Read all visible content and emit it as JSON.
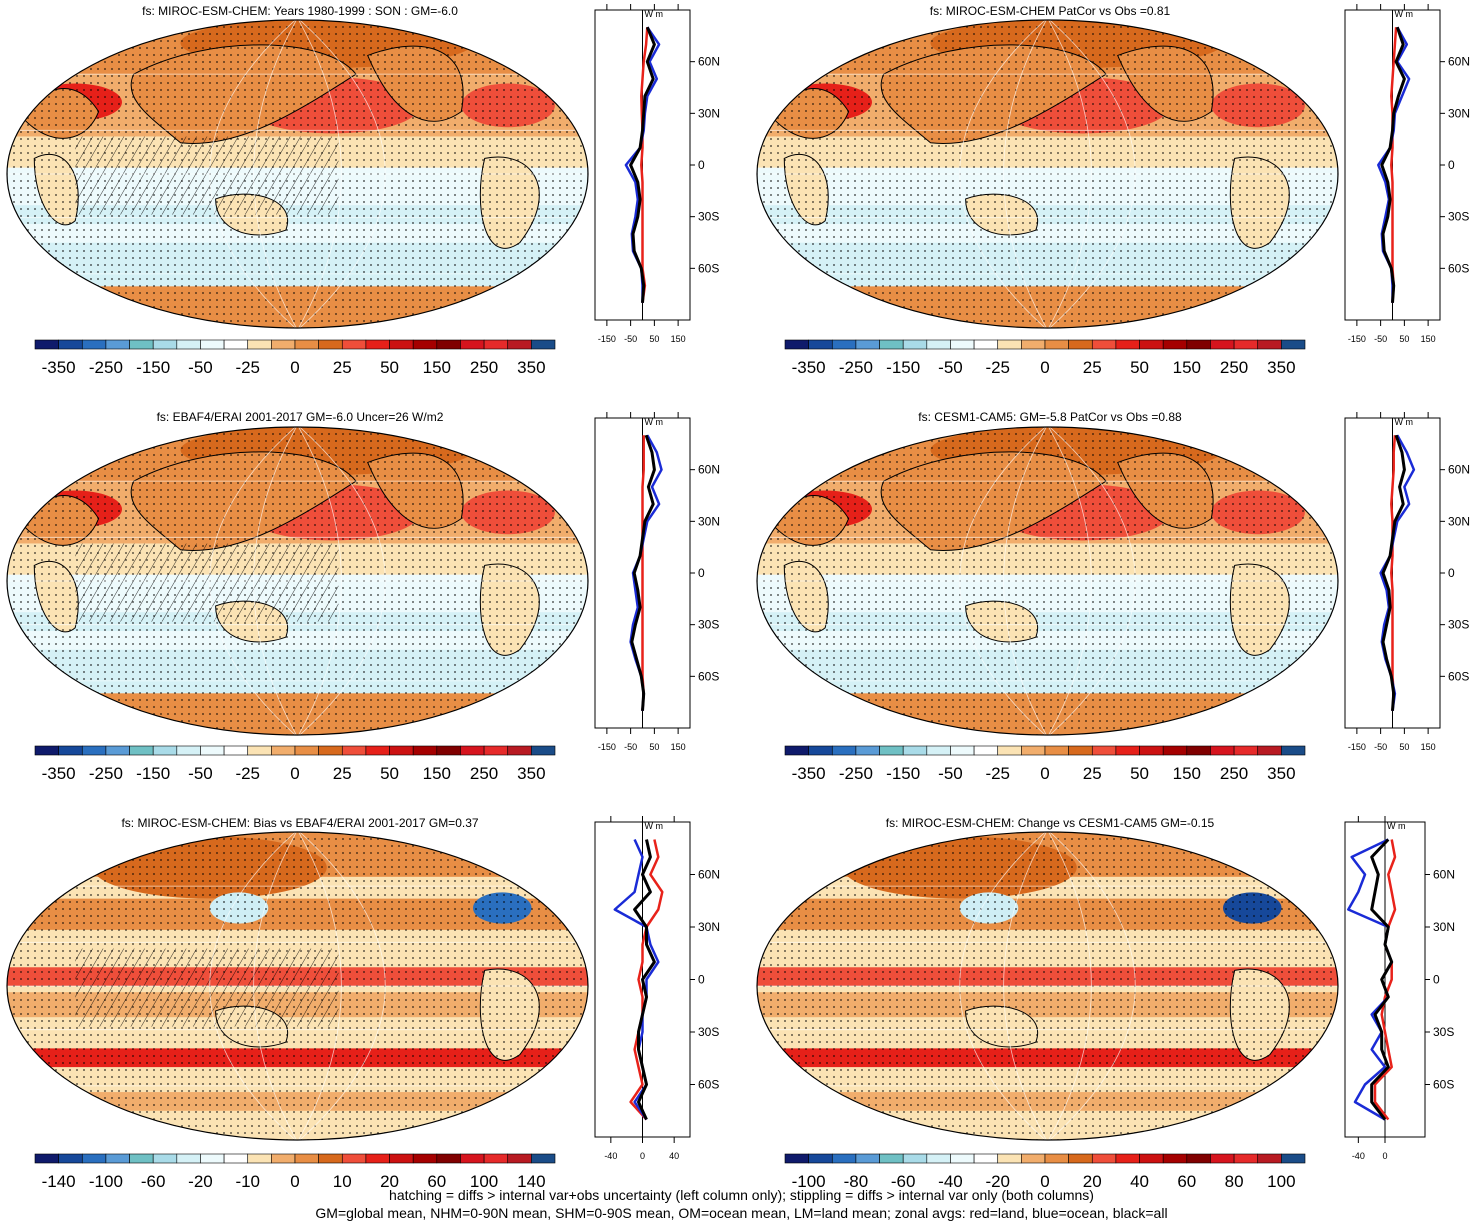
{
  "palette": [
    "#0a1a6e",
    "#133e8f",
    "#1f5fb0",
    "#4a88cf",
    "#6fb8c2",
    "#a7d8e6",
    "#cfeef5",
    "#e9f8fb",
    "#ffffff",
    "#fbe3b6",
    "#f2b47a",
    "#e88e4a",
    "#d96a1f",
    "#f0503a",
    "#e8221a",
    "#cc1010",
    "#a50000",
    "#800000",
    "#d01a1a",
    "#e23030",
    "#b8141e",
    "#1a4d8a"
  ],
  "zonal_axis_units": "W m",
  "chart_data": [
    {
      "type": "heatmap",
      "title": "fs: MIROC-ESM-CHEM: Years 1980-1999 : SON : GM=-6.0",
      "colorbar_labels": [
        "-350",
        "-250",
        "-150",
        "-50",
        "-25",
        "0",
        "25",
        "50",
        "150",
        "250",
        "350"
      ],
      "zonal_ticks": [
        "60N",
        "30N",
        "0",
        "30S",
        "60S"
      ],
      "zonal_xticks": [
        "-150",
        "-50",
        "50",
        "150"
      ],
      "zonal_xrange": [
        -200,
        200
      ],
      "series": [
        {
          "name": "red=land",
          "color": "#e8221a",
          "lat": [
            80,
            70,
            60,
            50,
            40,
            30,
            20,
            10,
            0,
            -10,
            -20,
            -30,
            -40,
            -50,
            -60,
            -70,
            -80
          ],
          "values": [
            20,
            15,
            5,
            0,
            -5,
            -3,
            0,
            0,
            -5,
            0,
            0,
            0,
            0,
            0,
            0,
            10,
            0
          ]
        },
        {
          "name": "blue=ocean",
          "color": "#1a2bd6",
          "lat": [
            80,
            70,
            60,
            50,
            40,
            30,
            20,
            10,
            0,
            -10,
            -20,
            -30,
            -40,
            -50,
            -60,
            -70,
            -80
          ],
          "values": [
            20,
            70,
            30,
            60,
            20,
            10,
            5,
            -10,
            -70,
            -30,
            -20,
            -30,
            -45,
            -40,
            -5,
            0,
            0
          ]
        },
        {
          "name": "black=all",
          "color": "#000000",
          "lat": [
            80,
            70,
            60,
            50,
            40,
            30,
            20,
            10,
            0,
            -10,
            -20,
            -30,
            -40,
            -50,
            -60,
            -70,
            -80
          ],
          "values": [
            20,
            50,
            20,
            45,
            10,
            5,
            0,
            -10,
            -50,
            -20,
            -10,
            -20,
            -40,
            -35,
            -5,
            5,
            0
          ]
        }
      ]
    },
    {
      "type": "heatmap",
      "title": "fs: MIROC-ESM-CHEM PatCor vs Obs =0.81",
      "colorbar_labels": [
        "-350",
        "-250",
        "-150",
        "-50",
        "-25",
        "0",
        "25",
        "50",
        "150",
        "250",
        "350"
      ],
      "zonal_ticks": [
        "60N",
        "30N",
        "0",
        "30S",
        "60S"
      ],
      "zonal_xticks": [
        "-150",
        "-50",
        "50",
        "150"
      ],
      "zonal_xrange": [
        -200,
        200
      ],
      "series": [
        {
          "name": "red=land",
          "color": "#e8221a",
          "lat": [
            80,
            70,
            60,
            50,
            40,
            30,
            20,
            10,
            0,
            -10,
            -20,
            -30,
            -40,
            -50,
            -60,
            -70,
            -80
          ],
          "values": [
            15,
            10,
            5,
            0,
            -5,
            0,
            0,
            0,
            -5,
            0,
            0,
            0,
            0,
            0,
            0,
            5,
            0
          ]
        },
        {
          "name": "blue=ocean",
          "color": "#1a2bd6",
          "lat": [
            80,
            70,
            60,
            50,
            40,
            30,
            20,
            10,
            0,
            -10,
            -20,
            -30,
            -40,
            -50,
            -60,
            -70,
            -80
          ],
          "values": [
            20,
            60,
            20,
            70,
            40,
            10,
            5,
            -10,
            -60,
            -30,
            -15,
            -30,
            -45,
            -40,
            -5,
            0,
            0
          ]
        },
        {
          "name": "black=all",
          "color": "#000000",
          "lat": [
            80,
            70,
            60,
            50,
            40,
            30,
            20,
            10,
            0,
            -10,
            -20,
            -30,
            -40,
            -50,
            -60,
            -70,
            -80
          ],
          "values": [
            20,
            45,
            15,
            50,
            25,
            5,
            0,
            -10,
            -45,
            -20,
            -10,
            -20,
            -40,
            -35,
            -5,
            5,
            0
          ]
        }
      ]
    },
    {
      "type": "heatmap",
      "title": "fs: EBAF4/ERAI 2001-2017 GM=-6.0 Uncer=26 W/m2",
      "colorbar_labels": [
        "-350",
        "-250",
        "-150",
        "-50",
        "-25",
        "0",
        "25",
        "50",
        "150",
        "250",
        "350"
      ],
      "zonal_ticks": [
        "60N",
        "30N",
        "0",
        "30S",
        "60S"
      ],
      "zonal_xticks": [
        "-150",
        "-50",
        "50",
        "150"
      ],
      "zonal_xrange": [
        -200,
        200
      ],
      "series": [
        {
          "name": "red=land",
          "color": "#e8221a",
          "lat": [
            80,
            70,
            60,
            50,
            40,
            30,
            20,
            10,
            0,
            -10,
            -20,
            -30,
            -40,
            -50,
            -60,
            -70,
            -80
          ],
          "values": [
            5,
            5,
            5,
            0,
            0,
            0,
            0,
            0,
            0,
            0,
            0,
            0,
            0,
            0,
            0,
            5,
            0
          ]
        },
        {
          "name": "blue=ocean",
          "color": "#1a2bd6",
          "lat": [
            80,
            70,
            60,
            50,
            40,
            30,
            20,
            10,
            0,
            -10,
            -20,
            -30,
            -40,
            -50,
            -60,
            -70,
            -80
          ],
          "values": [
            20,
            60,
            80,
            40,
            70,
            20,
            5,
            -10,
            -40,
            -30,
            -20,
            -40,
            -50,
            -30,
            -5,
            5,
            0
          ]
        },
        {
          "name": "black=all",
          "color": "#000000",
          "lat": [
            80,
            70,
            60,
            50,
            40,
            30,
            20,
            10,
            0,
            -10,
            -20,
            -30,
            -40,
            -50,
            -60,
            -70,
            -80
          ],
          "values": [
            15,
            40,
            50,
            25,
            45,
            10,
            0,
            -10,
            -35,
            -20,
            -10,
            -30,
            -45,
            -25,
            -5,
            5,
            0
          ]
        }
      ]
    },
    {
      "type": "heatmap",
      "title": "fs: CESM1-CAM5: GM=-5.8 PatCor vs Obs =0.88",
      "colorbar_labels": [
        "-350",
        "-250",
        "-150",
        "-50",
        "-25",
        "0",
        "25",
        "50",
        "150",
        "250",
        "350"
      ],
      "zonal_ticks": [
        "60N",
        "30N",
        "0",
        "30S",
        "60S"
      ],
      "zonal_xticks": [
        "-150",
        "-50",
        "50",
        "150"
      ],
      "zonal_xrange": [
        -200,
        200
      ],
      "series": [
        {
          "name": "red=land",
          "color": "#e8221a",
          "lat": [
            80,
            70,
            60,
            50,
            40,
            30,
            20,
            10,
            0,
            -10,
            -20,
            -30,
            -40,
            -50,
            -60,
            -70,
            -80
          ],
          "values": [
            10,
            5,
            5,
            0,
            -5,
            0,
            0,
            0,
            -5,
            0,
            0,
            0,
            0,
            0,
            0,
            5,
            0
          ]
        },
        {
          "name": "blue=ocean",
          "color": "#1a2bd6",
          "lat": [
            80,
            70,
            60,
            50,
            40,
            30,
            20,
            10,
            0,
            -10,
            -20,
            -30,
            -40,
            -50,
            -60,
            -70,
            -80
          ],
          "values": [
            20,
            60,
            90,
            50,
            70,
            20,
            5,
            -10,
            -50,
            -25,
            -15,
            -35,
            -45,
            -30,
            -5,
            10,
            0
          ]
        },
        {
          "name": "black=all",
          "color": "#000000",
          "lat": [
            80,
            70,
            60,
            50,
            40,
            30,
            20,
            10,
            0,
            -10,
            -20,
            -30,
            -40,
            -50,
            -60,
            -70,
            -80
          ],
          "values": [
            15,
            40,
            50,
            30,
            45,
            10,
            0,
            -10,
            -40,
            -15,
            -10,
            -25,
            -40,
            -25,
            -5,
            5,
            0
          ]
        }
      ]
    },
    {
      "type": "heatmap",
      "title": "fs: MIROC-ESM-CHEM: Bias vs EBAF4/ERAI 2001-2017  GM=0.37",
      "colorbar_labels": [
        "-140",
        "-100",
        "-60",
        "-20",
        "-10",
        "0",
        "10",
        "20",
        "60",
        "100",
        "140"
      ],
      "zonal_ticks": [
        "60N",
        "30N",
        "0",
        "30S",
        "60S"
      ],
      "zonal_xticks": [
        "-40",
        "0",
        "40"
      ],
      "zonal_xrange": [
        -60,
        60
      ],
      "series": [
        {
          "name": "red=land",
          "color": "#e8221a",
          "lat": [
            80,
            70,
            60,
            50,
            40,
            30,
            20,
            10,
            0,
            -10,
            -20,
            -30,
            -40,
            -50,
            -60,
            -70,
            -80
          ],
          "values": [
            15,
            20,
            10,
            25,
            20,
            5,
            0,
            0,
            -5,
            0,
            0,
            -5,
            -10,
            -5,
            0,
            -15,
            5
          ]
        },
        {
          "name": "blue=ocean",
          "color": "#1a2bd6",
          "lat": [
            80,
            70,
            60,
            50,
            40,
            30,
            20,
            10,
            0,
            -10,
            -20,
            -30,
            -40,
            -50,
            -60,
            -70,
            -80
          ],
          "values": [
            -10,
            0,
            -5,
            -10,
            -35,
            5,
            10,
            20,
            5,
            5,
            0,
            0,
            -5,
            0,
            5,
            -10,
            5
          ]
        },
        {
          "name": "black=all",
          "color": "#000000",
          "lat": [
            80,
            70,
            60,
            50,
            40,
            30,
            20,
            10,
            0,
            -10,
            -20,
            -30,
            -40,
            -50,
            -60,
            -70,
            -80
          ],
          "values": [
            5,
            10,
            0,
            10,
            -10,
            5,
            5,
            15,
            0,
            5,
            0,
            -5,
            -5,
            0,
            5,
            -5,
            5
          ]
        }
      ]
    },
    {
      "type": "heatmap",
      "title": "fs: MIROC-ESM-CHEM: Change vs CESM1-CAM5 GM=-0.15",
      "colorbar_labels": [
        "-100",
        "-80",
        "-60",
        "-40",
        "-20",
        "0",
        "20",
        "40",
        "60",
        "80",
        "100"
      ],
      "zonal_ticks": [
        "60N",
        "30N",
        "0",
        "30S",
        "60S"
      ],
      "zonal_xticks": [
        "-40",
        "0"
      ],
      "zonal_xrange": [
        -60,
        60
      ],
      "series": [
        {
          "name": "red=land",
          "color": "#e8221a",
          "lat": [
            80,
            70,
            60,
            50,
            40,
            30,
            20,
            10,
            0,
            -10,
            -20,
            -30,
            -40,
            -50,
            -60,
            -70,
            -80
          ],
          "values": [
            10,
            15,
            5,
            10,
            15,
            5,
            0,
            10,
            10,
            0,
            -5,
            0,
            5,
            10,
            -15,
            -15,
            5
          ]
        },
        {
          "name": "blue=ocean",
          "color": "#1a2bd6",
          "lat": [
            80,
            70,
            60,
            50,
            40,
            30,
            20,
            10,
            0,
            -10,
            -20,
            -30,
            -40,
            -50,
            -60,
            -70,
            -80
          ],
          "values": [
            5,
            -50,
            -30,
            -40,
            -55,
            5,
            0,
            10,
            -5,
            5,
            -20,
            -5,
            -20,
            0,
            -30,
            -45,
            0
          ]
        },
        {
          "name": "black=all",
          "color": "#000000",
          "lat": [
            80,
            70,
            60,
            50,
            40,
            30,
            20,
            10,
            0,
            -10,
            -20,
            -30,
            -40,
            -50,
            -60,
            -70,
            -80
          ],
          "values": [
            5,
            -20,
            -10,
            -15,
            -20,
            5,
            0,
            10,
            -5,
            5,
            -15,
            -5,
            -5,
            5,
            -20,
            -20,
            0
          ]
        }
      ]
    }
  ],
  "footer": {
    "line1": "hatching = diffs > internal var+obs uncertainty (left column only); stippling = diffs > internal var only (both columns)",
    "line2": "GM=global mean, NHM=0-90N mean, SHM=0-90S mean, OM=ocean mean, LM=land mean; zonal avgs: red=land, blue=ocean, black=all"
  }
}
